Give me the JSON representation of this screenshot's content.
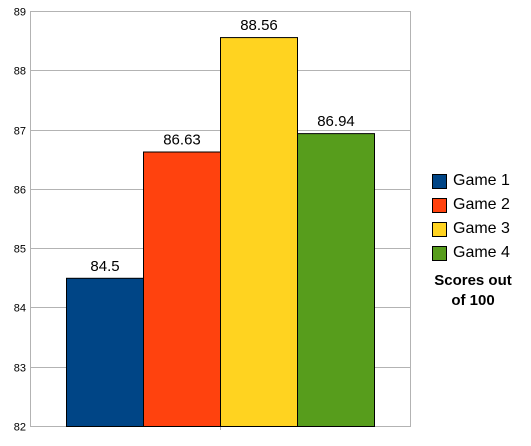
{
  "chart_data": {
    "type": "bar",
    "categories": [
      "Game 1",
      "Game 2",
      "Game 3",
      "Game 4"
    ],
    "values": [
      84.5,
      86.63,
      88.56,
      86.94
    ],
    "value_labels": [
      "84.5",
      "86.63",
      "88.56",
      "86.94"
    ],
    "colors": [
      "#004586",
      "#ff420e",
      "#ffd320",
      "#579d1c"
    ],
    "ylim": [
      82,
      89
    ],
    "yticks": [
      82,
      83,
      84,
      85,
      86,
      87,
      88,
      89
    ],
    "grid": true,
    "legend_position": "right",
    "title": "",
    "xlabel": "",
    "ylabel": "",
    "annotation": "Scores out of 100"
  }
}
